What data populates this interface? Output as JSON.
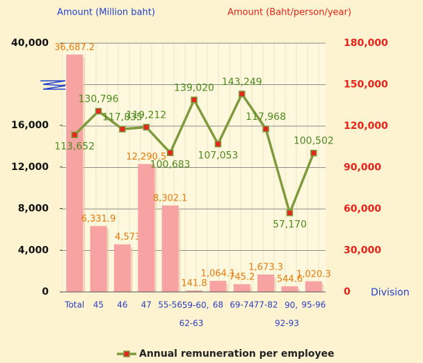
{
  "chart_data": {
    "type": "bar_line",
    "y_axis_label": "Amount  (Million baht)",
    "y2_axis_label": "Amount (Baht/person/year)",
    "x_axis_label": "Division",
    "categories": [
      "Total",
      "45",
      "46",
      "47",
      "55-56",
      "59-60, 62-63",
      "68",
      "69-74",
      "77-82",
      "90, 92-93",
      "95-96"
    ],
    "ylim": [
      0,
      40000
    ],
    "yticks": [
      0,
      {
        "value": 4000,
        "label": "4,000"
      },
      {
        "value": 8000,
        "label": "8,000"
      },
      {
        "value": 12000,
        "label": "12,000"
      },
      {
        "value": 16000,
        "label": "16,000"
      },
      {
        "value": 40000,
        "label": "40,000"
      }
    ],
    "y_axis_break": true,
    "y2lim": [
      0,
      180000
    ],
    "y2ticks": [
      0,
      {
        "value": 30000,
        "label": "30,000"
      },
      {
        "value": 60000,
        "label": "60,000"
      },
      {
        "value": 90000,
        "label": "90,000"
      },
      {
        "value": 120000,
        "label": "120,000"
      },
      {
        "value": 150000,
        "label": "150,000"
      },
      {
        "value": 180000,
        "label": "180,000"
      }
    ],
    "grid": true,
    "legend": "bottom",
    "series": [
      {
        "type": "bar",
        "color": "#f7a3a3",
        "values": [
          36687.2,
          6331.9,
          4573.4,
          12290.5,
          8302.1,
          141.8,
          1064.1,
          745.2,
          1673.3,
          544.6,
          1020.3
        ],
        "value_labels": [
          "36,687.2",
          "6,331.9",
          "4,573.4",
          "12,290.5",
          "8,302.1",
          "141.8",
          "1,064.1",
          "745.2",
          "1,673.3",
          "544.6",
          "1,020.3"
        ]
      },
      {
        "type": "line",
        "name": "Annual remuneration per employee",
        "color": "#7f9a3c",
        "marker_color": "#e4261e",
        "axis": "y2",
        "values": [
          113652,
          130796,
          117835,
          119212,
          100683,
          139020,
          107053,
          143249,
          117968,
          57170,
          100502
        ],
        "value_labels": [
          "113,652",
          "130,796",
          "117,835",
          "119,212",
          "100,683",
          "139,020",
          "107,053",
          "143,249",
          "117,968",
          "57,170",
          "100,502"
        ]
      }
    ]
  }
}
